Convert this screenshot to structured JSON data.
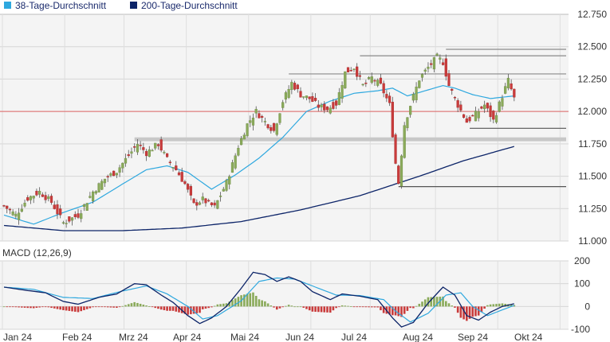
{
  "chart_data": [
    {
      "type": "candlestick",
      "legend": [
        {
          "name": "38-Tage-Durchschnitt",
          "color": "#2ea8df"
        },
        {
          "name": "200-Tage-Durchschnitt",
          "color": "#0c2468"
        }
      ],
      "ylim": [
        11.0,
        12.75
      ],
      "y_ticks": [
        "12.750",
        "12.500",
        "12.250",
        "12.000",
        "11.750",
        "11.500",
        "11.250",
        "11.000"
      ],
      "x_ticks": [
        "Jan 24",
        "Feb 24",
        "Mrz 24",
        "Apr 24",
        "Mai 24",
        "Jun 24",
        "Jul 24",
        "Aug 24",
        "Sep 24",
        "Okt 24"
      ],
      "reference_line": 12.0,
      "resistance_lines": [
        12.48,
        12.43,
        12.29
      ],
      "support_lines": [
        11.87,
        11.42
      ],
      "support_zone": [
        11.77,
        11.8
      ],
      "close_anchors": [
        [
          0,
          11.27
        ],
        [
          4,
          11.2
        ],
        [
          8,
          11.33
        ],
        [
          12,
          11.38
        ],
        [
          16,
          11.3
        ],
        [
          20,
          11.14
        ],
        [
          25,
          11.2
        ],
        [
          30,
          11.38
        ],
        [
          34,
          11.48
        ],
        [
          38,
          11.54
        ],
        [
          42,
          11.66
        ],
        [
          45,
          11.75
        ],
        [
          48,
          11.68
        ],
        [
          52,
          11.75
        ],
        [
          55,
          11.63
        ],
        [
          58,
          11.55
        ],
        [
          61,
          11.44
        ],
        [
          64,
          11.28
        ],
        [
          67,
          11.32
        ],
        [
          71,
          11.26
        ],
        [
          75,
          11.45
        ],
        [
          79,
          11.73
        ],
        [
          82,
          11.9
        ],
        [
          85,
          12.0
        ],
        [
          88,
          11.92
        ],
        [
          91,
          11.85
        ],
        [
          94,
          12.08
        ],
        [
          97,
          12.22
        ],
        [
          100,
          12.13
        ],
        [
          103,
          12.1
        ],
        [
          106,
          12.04
        ],
        [
          109,
          12.02
        ],
        [
          112,
          12.06
        ],
        [
          115,
          12.3
        ],
        [
          118,
          12.34
        ],
        [
          121,
          12.2
        ],
        [
          124,
          12.26
        ],
        [
          127,
          12.2
        ],
        [
          130,
          12.05
        ],
        [
          132,
          11.6
        ],
        [
          133,
          11.45
        ],
        [
          135,
          11.9
        ],
        [
          137,
          12.05
        ],
        [
          140,
          12.25
        ],
        [
          143,
          12.34
        ],
        [
          146,
          12.42
        ],
        [
          148,
          12.38
        ],
        [
          150,
          12.2
        ],
        [
          153,
          12.05
        ],
        [
          156,
          11.92
        ],
        [
          159,
          11.98
        ],
        [
          162,
          12.05
        ],
        [
          165,
          11.93
        ],
        [
          168,
          12.12
        ],
        [
          170,
          12.24
        ],
        [
          172,
          12.1
        ]
      ],
      "ma38_anchors": [
        [
          0,
          11.2
        ],
        [
          10,
          11.13
        ],
        [
          20,
          11.22
        ],
        [
          30,
          11.3
        ],
        [
          40,
          11.44
        ],
        [
          48,
          11.55
        ],
        [
          55,
          11.58
        ],
        [
          62,
          11.53
        ],
        [
          70,
          11.4
        ],
        [
          78,
          11.51
        ],
        [
          86,
          11.64
        ],
        [
          94,
          11.8
        ],
        [
          102,
          12.0
        ],
        [
          110,
          12.08
        ],
        [
          118,
          12.14
        ],
        [
          126,
          12.16
        ],
        [
          131,
          12.18
        ],
        [
          136,
          12.12
        ],
        [
          142,
          12.16
        ],
        [
          148,
          12.2
        ],
        [
          152,
          12.18
        ],
        [
          158,
          12.13
        ],
        [
          164,
          12.1
        ],
        [
          172,
          12.12
        ]
      ],
      "ma200_anchors": [
        [
          0,
          11.12
        ],
        [
          20,
          11.08
        ],
        [
          40,
          11.08
        ],
        [
          60,
          11.1
        ],
        [
          80,
          11.15
        ],
        [
          100,
          11.24
        ],
        [
          120,
          11.35
        ],
        [
          140,
          11.5
        ],
        [
          155,
          11.62
        ],
        [
          172,
          11.73
        ]
      ]
    },
    {
      "type": "macd",
      "title": "MACD (12,26,9)",
      "ylim": [
        -100,
        200
      ],
      "y_ticks": [
        "200",
        "100",
        "0",
        "-100"
      ],
      "macd_anchors": [
        [
          0,
          85
        ],
        [
          8,
          70
        ],
        [
          14,
          60
        ],
        [
          20,
          22
        ],
        [
          25,
          10
        ],
        [
          32,
          40
        ],
        [
          38,
          55
        ],
        [
          44,
          100
        ],
        [
          48,
          95
        ],
        [
          53,
          50
        ],
        [
          57,
          18
        ],
        [
          62,
          -40
        ],
        [
          66,
          -75
        ],
        [
          70,
          -50
        ],
        [
          75,
          0
        ],
        [
          80,
          80
        ],
        [
          84,
          150
        ],
        [
          88,
          140
        ],
        [
          92,
          110
        ],
        [
          96,
          130
        ],
        [
          100,
          110
        ],
        [
          104,
          65
        ],
        [
          110,
          30
        ],
        [
          114,
          55
        ],
        [
          120,
          45
        ],
        [
          126,
          30
        ],
        [
          131,
          -50
        ],
        [
          134,
          -90
        ],
        [
          138,
          -70
        ],
        [
          143,
          15
        ],
        [
          148,
          85
        ],
        [
          152,
          50
        ],
        [
          156,
          -40
        ],
        [
          160,
          -60
        ],
        [
          164,
          -25
        ],
        [
          168,
          0
        ],
        [
          172,
          12
        ]
      ],
      "signal_anchors": [
        [
          0,
          85
        ],
        [
          10,
          75
        ],
        [
          20,
          40
        ],
        [
          30,
          35
        ],
        [
          40,
          68
        ],
        [
          48,
          90
        ],
        [
          55,
          55
        ],
        [
          62,
          0
        ],
        [
          67,
          -55
        ],
        [
          72,
          -40
        ],
        [
          80,
          25
        ],
        [
          86,
          110
        ],
        [
          92,
          125
        ],
        [
          98,
          120
        ],
        [
          104,
          90
        ],
        [
          112,
          50
        ],
        [
          120,
          48
        ],
        [
          128,
          30
        ],
        [
          132,
          -20
        ],
        [
          137,
          -68
        ],
        [
          143,
          -30
        ],
        [
          149,
          50
        ],
        [
          154,
          60
        ],
        [
          158,
          0
        ],
        [
          163,
          -40
        ],
        [
          168,
          -15
        ],
        [
          172,
          5
        ]
      ]
    }
  ]
}
